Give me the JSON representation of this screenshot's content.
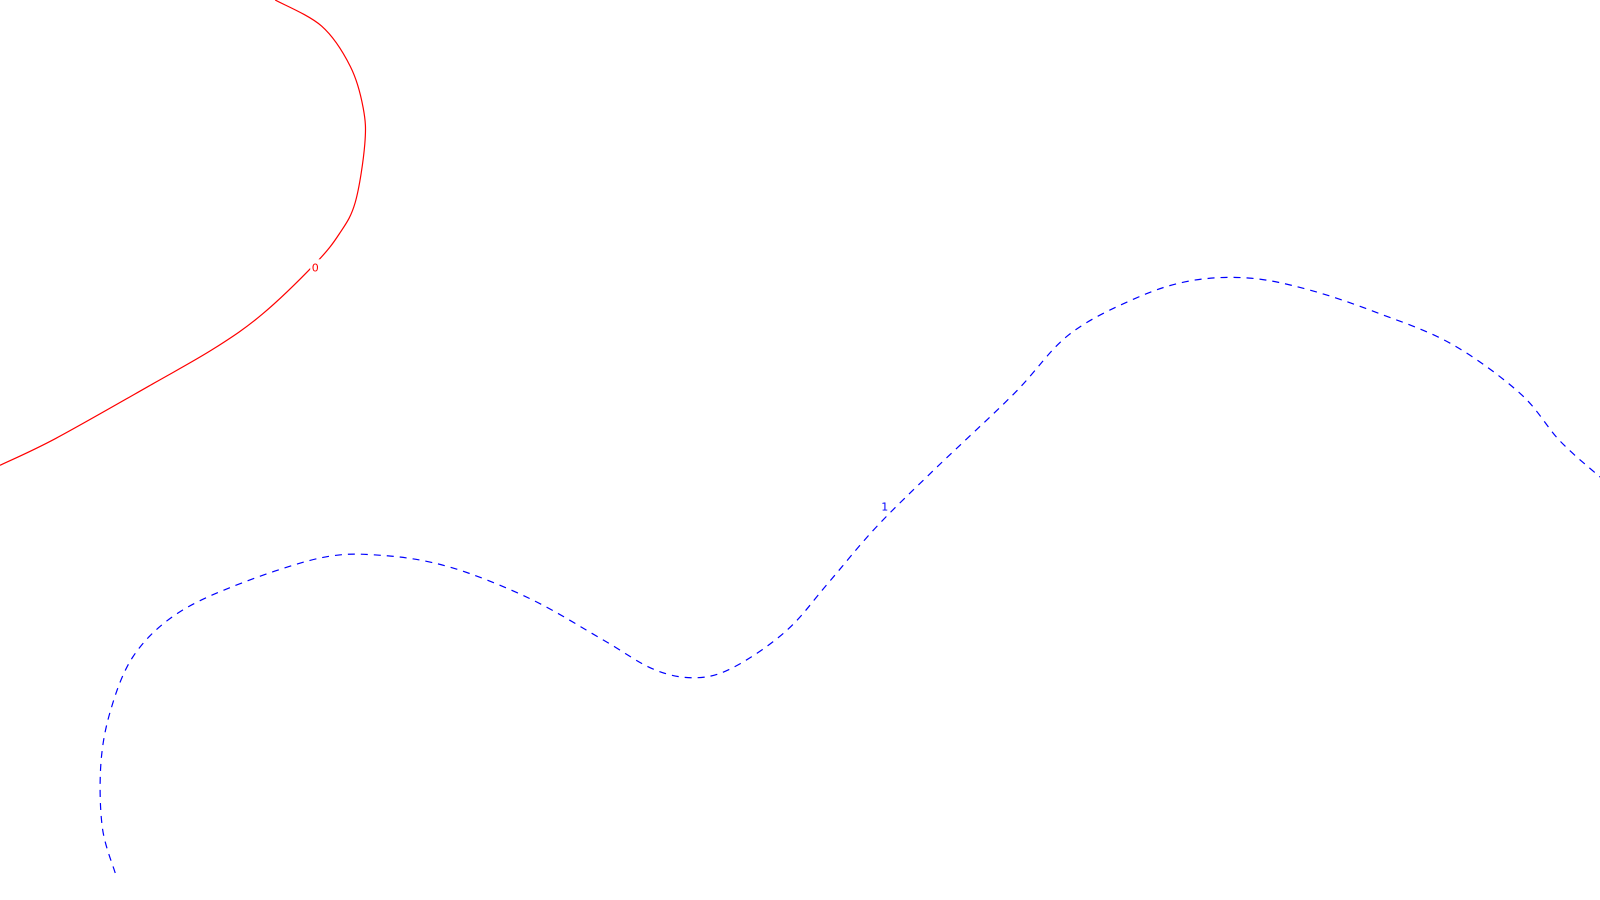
{
  "chart_data": {
    "type": "line",
    "title": "",
    "xlabel": "",
    "ylabel": "",
    "grid": false,
    "legend": "none",
    "contours": [
      {
        "level": "0",
        "color": "#ff0000",
        "dashed": false,
        "points": [
          [
            0.172,
            0.0
          ],
          [
            0.201,
            0.029
          ],
          [
            0.219,
            0.074
          ],
          [
            0.227,
            0.12
          ],
          [
            0.228,
            0.16
          ],
          [
            0.222,
            0.225
          ],
          [
            0.212,
            0.26
          ],
          [
            0.197,
            0.293
          ],
          [
            0.164,
            0.349
          ],
          [
            0.134,
            0.387
          ],
          [
            0.095,
            0.427
          ],
          [
            0.035,
            0.487
          ],
          [
            0.0,
            0.517
          ]
        ],
        "label_at": [
          0.197,
          0.297
        ]
      },
      {
        "level": "1",
        "color": "#0000ff",
        "dashed": true,
        "points": [
          [
            0.072,
            0.97
          ],
          [
            0.064,
            0.92
          ],
          [
            0.063,
            0.85
          ],
          [
            0.069,
            0.79
          ],
          [
            0.083,
            0.73
          ],
          [
            0.108,
            0.685
          ],
          [
            0.145,
            0.652
          ],
          [
            0.2,
            0.62
          ],
          [
            0.238,
            0.617
          ],
          [
            0.281,
            0.63
          ],
          [
            0.331,
            0.665
          ],
          [
            0.376,
            0.71
          ],
          [
            0.409,
            0.744
          ],
          [
            0.436,
            0.753
          ],
          [
            0.46,
            0.74
          ],
          [
            0.492,
            0.7
          ],
          [
            0.518,
            0.647
          ],
          [
            0.548,
            0.585
          ],
          [
            0.585,
            0.52
          ],
          [
            0.634,
            0.437
          ],
          [
            0.668,
            0.372
          ],
          [
            0.709,
            0.332
          ],
          [
            0.744,
            0.312
          ],
          [
            0.781,
            0.309
          ],
          [
            0.818,
            0.322
          ],
          [
            0.86,
            0.347
          ],
          [
            0.907,
            0.382
          ],
          [
            0.95,
            0.437
          ],
          [
            0.975,
            0.49
          ],
          [
            1.0,
            0.53
          ]
        ],
        "label_at": [
          0.553,
          0.563
        ]
      }
    ]
  }
}
